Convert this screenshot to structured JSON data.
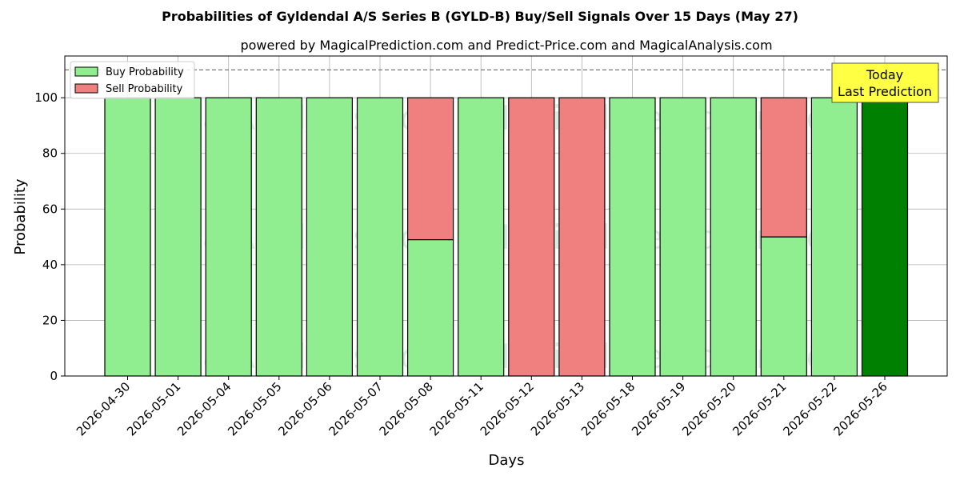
{
  "chart_data": {
    "type": "bar",
    "stacked": true,
    "title": "Probabilities of Gyldendal A/S Series B (GYLD-B) Buy/Sell Signals Over 15 Days (May 27)",
    "subtitle": "powered by MagicalPrediction.com and Predict-Price.com and MagicalAnalysis.com",
    "xlabel": "Days",
    "ylabel": "Probability",
    "ylim": [
      0,
      115
    ],
    "yticks": [
      0,
      20,
      40,
      60,
      80,
      100
    ],
    "grid": true,
    "reference_line": 110,
    "legend_placement": "top-left",
    "categories": [
      "2026-04-30",
      "2026-05-01",
      "2026-05-04",
      "2026-05-05",
      "2026-05-06",
      "2026-05-07",
      "2026-05-08",
      "2026-05-11",
      "2026-05-12",
      "2026-05-13",
      "2026-05-18",
      "2026-05-19",
      "2026-05-20",
      "2026-05-21",
      "2026-05-22",
      "2026-05-26"
    ],
    "series": [
      {
        "name": "Buy Probability",
        "color": "#90ee90",
        "values": [
          100,
          100,
          100,
          100,
          100,
          100,
          49,
          100,
          0,
          0,
          100,
          100,
          100,
          50,
          100,
          100
        ]
      },
      {
        "name": "Sell Probability",
        "color": "#f08080",
        "values": [
          0,
          0,
          0,
          0,
          0,
          0,
          51,
          0,
          100,
          100,
          0,
          0,
          0,
          50,
          0,
          0
        ]
      }
    ],
    "highlight": {
      "category": "2026-05-26",
      "color": "#008000"
    },
    "annotation": {
      "line1": "Today",
      "line2": "Last Prediction",
      "color": "#ffff44"
    },
    "watermarks": [
      "MagicalAnalysis.com",
      "MagicalPrediction.com"
    ]
  }
}
